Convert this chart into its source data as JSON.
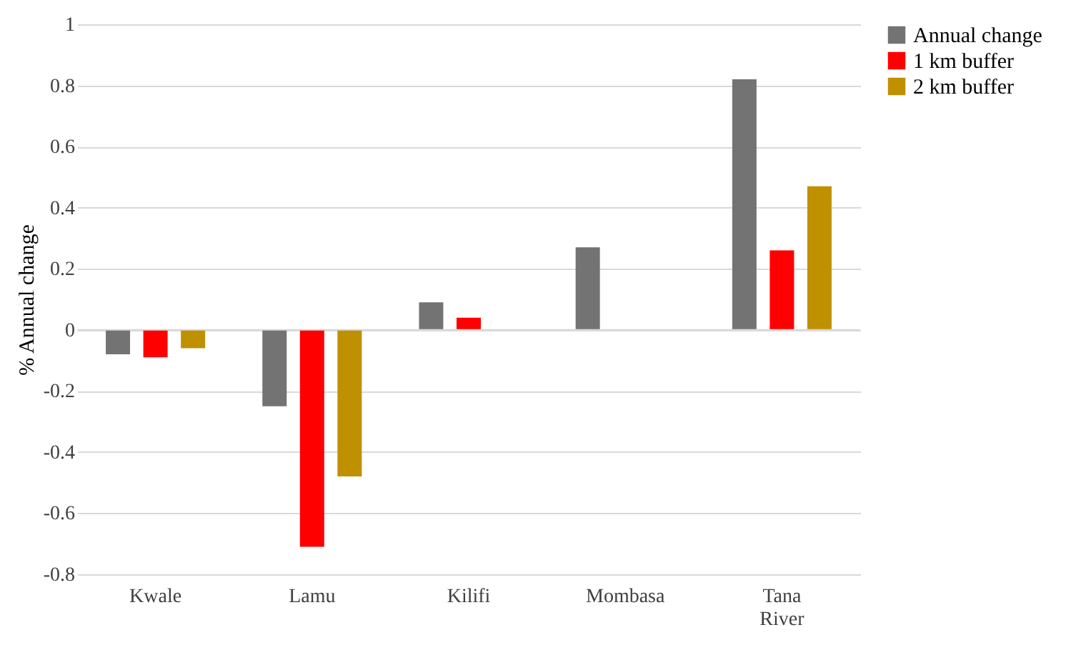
{
  "chart_data": {
    "type": "bar",
    "ylabel": "% Annual change",
    "categories": [
      "Kwale",
      "Lamu",
      "Kilifi",
      "Mombasa",
      "Tana River"
    ],
    "series": [
      {
        "name": "Annual change",
        "color": "#737373",
        "values": [
          -0.08,
          -0.25,
          0.09,
          0.27,
          0.82
        ]
      },
      {
        "name": "1 km buffer",
        "color": "#ff0000",
        "values": [
          -0.09,
          -0.71,
          0.04,
          null,
          0.26
        ]
      },
      {
        "name": "2 km buffer",
        "color": "#bf9000",
        "values": [
          -0.06,
          -0.48,
          null,
          null,
          0.47
        ]
      }
    ],
    "ylim": [
      -0.8,
      1
    ],
    "yticks": [
      -0.8,
      -0.6,
      -0.4,
      -0.2,
      0,
      0.2,
      0.4,
      0.6,
      0.8,
      1
    ],
    "grid": "y",
    "legend": "right"
  }
}
